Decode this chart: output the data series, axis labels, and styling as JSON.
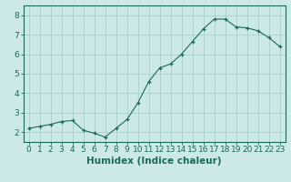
{
  "x": [
    0,
    1,
    2,
    3,
    4,
    5,
    6,
    7,
    8,
    9,
    10,
    11,
    12,
    13,
    14,
    15,
    16,
    17,
    18,
    19,
    20,
    21,
    22,
    23
  ],
  "y": [
    2.2,
    2.3,
    2.4,
    2.55,
    2.6,
    2.1,
    1.95,
    1.75,
    2.2,
    2.65,
    3.5,
    4.6,
    5.3,
    5.5,
    6.0,
    6.65,
    7.3,
    7.8,
    7.8,
    7.4,
    7.35,
    7.2,
    6.85,
    6.4
  ],
  "line_color": "#1a6b5a",
  "marker": "+",
  "marker_size": 3,
  "bg_color": "#cce8e8",
  "grid_color": "#aacece",
  "xlabel": "Humidex (Indice chaleur)",
  "ylim": [
    1.5,
    8.5
  ],
  "xlim": [
    -0.5,
    23.5
  ],
  "yticks": [
    2,
    3,
    4,
    5,
    6,
    7,
    8
  ],
  "xticks": [
    0,
    1,
    2,
    3,
    4,
    5,
    6,
    7,
    8,
    9,
    10,
    11,
    12,
    13,
    14,
    15,
    16,
    17,
    18,
    19,
    20,
    21,
    22,
    23
  ],
  "tick_label_fontsize": 6.5,
  "xlabel_fontsize": 7.5,
  "axis_color": "#1a6b5a",
  "spine_color": "#1a6b5a"
}
